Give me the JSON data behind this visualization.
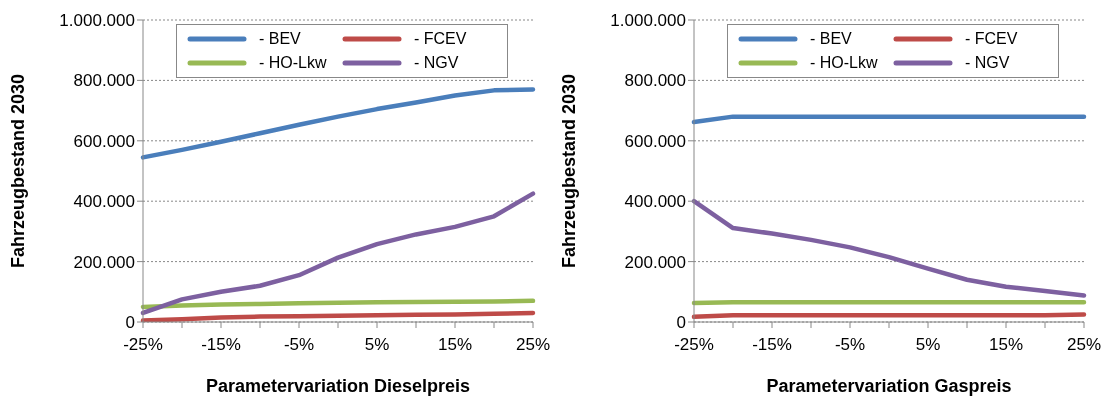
{
  "chart_data": [
    {
      "type": "line",
      "xlabel": "Parametervariation Dieselpreis",
      "ylabel": "Fahrzeugbestand 2030",
      "categories": [
        "-25%",
        null,
        "-15%",
        null,
        "-5%",
        null,
        "5%",
        null,
        "15%",
        null,
        "25%"
      ],
      "series": [
        {
          "name": "- BEV",
          "color": "#4a7ebb",
          "values": [
            545000,
            570000,
            597000,
            625000,
            653000,
            680000,
            705000,
            727000,
            750000,
            767000,
            770000
          ]
        },
        {
          "name": "- FCEV",
          "color": "#be4b48",
          "values": [
            5000,
            9000,
            15000,
            18000,
            19000,
            21000,
            22000,
            24000,
            25000,
            27000,
            30000
          ]
        },
        {
          "name": "- HO-Lkw",
          "color": "#98b954",
          "values": [
            50000,
            55000,
            58000,
            60000,
            62000,
            64000,
            65000,
            66000,
            67000,
            68000,
            70000
          ]
        },
        {
          "name": "- NGV",
          "color": "#7d60a0",
          "values": [
            30000,
            75000,
            100000,
            120000,
            155000,
            213000,
            258000,
            290000,
            315000,
            350000,
            425000
          ]
        }
      ],
      "ylim": [
        0,
        1000000
      ],
      "yticks": [
        {
          "value": 0,
          "label": "0"
        },
        {
          "value": 200000,
          "label": "200.000"
        },
        {
          "value": 400000,
          "label": "400.000"
        },
        {
          "value": 600000,
          "label": "600.000"
        },
        {
          "value": 800000,
          "label": "800.000"
        },
        {
          "value": 1000000,
          "label": "1.000.000"
        }
      ],
      "grid": "y",
      "legend": "top",
      "marker": "none",
      "line_style": "solid"
    },
    {
      "type": "line",
      "xlabel": "Parametervariation Gaspreis",
      "ylabel": "Fahrzeugbestand 2030",
      "categories": [
        "-25%",
        null,
        "-15%",
        null,
        "-5%",
        null,
        "5%",
        null,
        "15%",
        null,
        "25%"
      ],
      "series": [
        {
          "name": "- BEV",
          "color": "#4a7ebb",
          "values": [
            662000,
            680000,
            680000,
            680000,
            680000,
            680000,
            680000,
            680000,
            680000,
            680000,
            680000
          ]
        },
        {
          "name": "- FCEV",
          "color": "#be4b48",
          "values": [
            17000,
            22000,
            22000,
            22000,
            22000,
            22000,
            22000,
            22000,
            22000,
            22000,
            25000
          ]
        },
        {
          "name": "- HO-Lkw",
          "color": "#98b954",
          "values": [
            63000,
            65000,
            65000,
            65000,
            65000,
            65000,
            65000,
            65000,
            65000,
            65000,
            65000
          ]
        },
        {
          "name": "- NGV",
          "color": "#7d60a0",
          "values": [
            400000,
            311000,
            293000,
            272000,
            247000,
            215000,
            177000,
            140000,
            117000,
            103000,
            88000
          ]
        }
      ],
      "ylim": [
        0,
        1000000
      ],
      "yticks": [
        {
          "value": 0,
          "label": "0"
        },
        {
          "value": 200000,
          "label": "200.000"
        },
        {
          "value": 400000,
          "label": "400.000"
        },
        {
          "value": 600000,
          "label": "600.000"
        },
        {
          "value": 800000,
          "label": "800.000"
        },
        {
          "value": 1000000,
          "label": "1.000.000"
        }
      ],
      "grid": "y",
      "legend": "top",
      "marker": "none",
      "line_style": "solid"
    }
  ]
}
